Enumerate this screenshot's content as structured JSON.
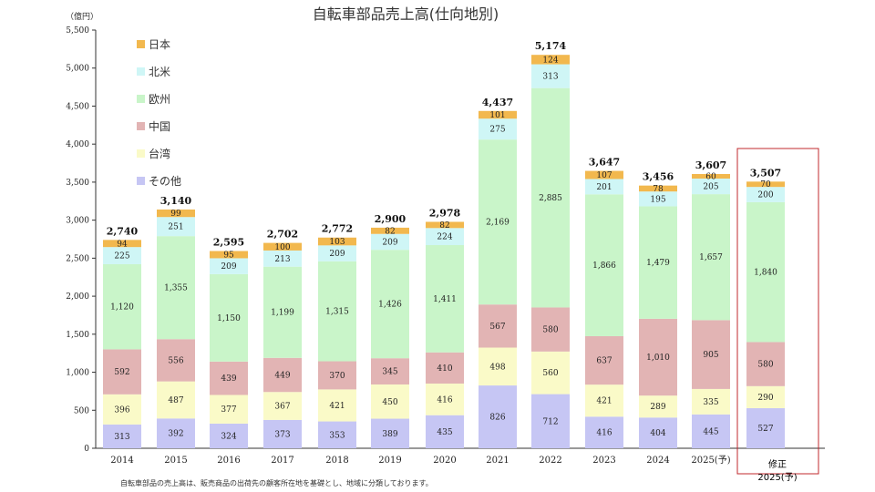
{
  "chart_data": {
    "type": "bar",
    "stacked": true,
    "title": "自転車部品売上高(仕向地別)",
    "unit_label": "（億円）",
    "ylim": [
      0,
      5500
    ],
    "yticks": [
      "0",
      "500",
      "1,000",
      "1,500",
      "2,000",
      "2,500",
      "3,000",
      "3,500",
      "4,000",
      "4,500",
      "5,000",
      "5,500"
    ],
    "ytick_values": [
      0,
      500,
      1000,
      1500,
      2000,
      2500,
      3000,
      3500,
      4000,
      4500,
      5000,
      5500
    ],
    "categories": [
      "2014",
      "2015",
      "2016",
      "2017",
      "2018",
      "2019",
      "2020",
      "2021",
      "2022",
      "2023",
      "2024",
      "2025(予)",
      ""
    ],
    "series": [
      {
        "name": "その他",
        "color": "#c6c6f4",
        "values": [
          313,
          392,
          324,
          373,
          353,
          389,
          435,
          826,
          712,
          416,
          404,
          445,
          527
        ],
        "labels": [
          "313",
          "392",
          "324",
          "373",
          "353",
          "389",
          "435",
          "826",
          "712",
          "416",
          "404",
          "445",
          "527"
        ]
      },
      {
        "name": "台湾",
        "color": "#fafac8",
        "values": [
          396,
          487,
          377,
          367,
          421,
          450,
          416,
          498,
          560,
          421,
          289,
          335,
          290
        ],
        "labels": [
          "396",
          "487",
          "377",
          "367",
          "421",
          "450",
          "416",
          "498",
          "560",
          "421",
          "289",
          "335",
          "290"
        ]
      },
      {
        "name": "中国",
        "color": "#e2b4b4",
        "values": [
          592,
          556,
          439,
          449,
          370,
          345,
          410,
          567,
          580,
          637,
          1010,
          905,
          580
        ],
        "labels": [
          "592",
          "556",
          "439",
          "449",
          "370",
          "345",
          "410",
          "567",
          "580",
          "637",
          "1,010",
          "905",
          "580"
        ]
      },
      {
        "name": "欧州",
        "color": "#c9f5c9",
        "values": [
          1120,
          1355,
          1150,
          1199,
          1315,
          1426,
          1411,
          2169,
          2885,
          1866,
          1479,
          1657,
          1840
        ],
        "labels": [
          "1,120",
          "1,355",
          "1,150",
          "1,199",
          "1,315",
          "1,426",
          "1,411",
          "2,169",
          "2,885",
          "1,866",
          "1,479",
          "1,657",
          "1,840"
        ]
      },
      {
        "name": "北米",
        "color": "#cff6f6",
        "values": [
          225,
          251,
          209,
          213,
          209,
          209,
          224,
          275,
          313,
          201,
          195,
          205,
          200
        ],
        "labels": [
          "225",
          "251",
          "209",
          "213",
          "209",
          "209",
          "224",
          "275",
          "313",
          "201",
          "195",
          "205",
          "200"
        ]
      },
      {
        "name": "日本",
        "color": "#f2b84e",
        "values": [
          94,
          99,
          95,
          100,
          103,
          82,
          82,
          101,
          124,
          107,
          78,
          60,
          70
        ],
        "labels": [
          "94",
          "99",
          "95",
          "100",
          "103",
          "82",
          "82",
          "101",
          "124",
          "107",
          "78",
          "60",
          "70"
        ]
      }
    ],
    "totals": [
      "2,740",
      "3,140",
      "2,595",
      "2,702",
      "2,772",
      "2,900",
      "2,978",
      "4,437",
      "5,174",
      "3,647",
      "3,456",
      "3,607",
      "3,507"
    ],
    "legend_order": [
      "日本",
      "北米",
      "欧州",
      "中国",
      "台湾",
      "その他"
    ],
    "legend_position": "top-left",
    "footnote": "自転車部品の売上高は、販売商品の出荷先の顧客所在地を基礎とし、地域に分類しております。",
    "correction_box": {
      "line1": "修正",
      "line2": "2025(予)",
      "border_color": "#c0282d"
    }
  }
}
